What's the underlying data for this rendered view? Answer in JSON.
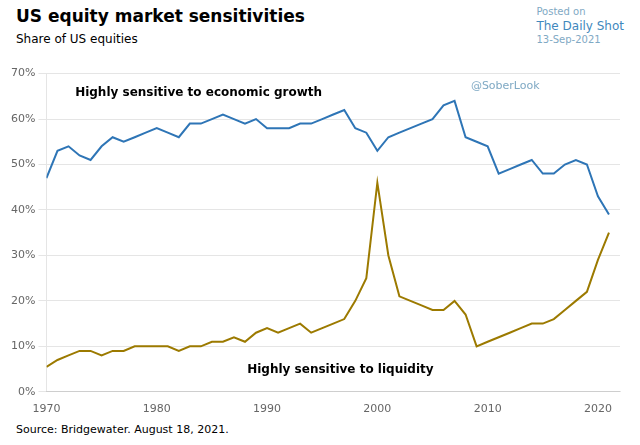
{
  "chart_data": {
    "type": "line",
    "title": "US equity market sensitivities",
    "subtitle": "Share of US equities",
    "annotations": [
      "Posted on",
      "The Daily Shot",
      "13-Sep-2021",
      "@SoberLook",
      "Highly sensitive to economic growth",
      "Highly sensitive to liquidity",
      "Source: Bridgewater. August 18, 2021."
    ],
    "x": [
      1970,
      1971,
      1972,
      1973,
      1974,
      1975,
      1976,
      1977,
      1978,
      1979,
      1980,
      1981,
      1982,
      1983,
      1984,
      1985,
      1986,
      1987,
      1988,
      1989,
      1990,
      1991,
      1992,
      1993,
      1994,
      1995,
      1996,
      1997,
      1998,
      1999,
      2000,
      2001,
      2002,
      2003,
      2004,
      2005,
      2006,
      2007,
      2008,
      2009,
      2010,
      2011,
      2012,
      2013,
      2014,
      2015,
      2016,
      2017,
      2018,
      2019,
      2020,
      2021
    ],
    "series": [
      {
        "color": "#2E75B6",
        "values": [
          0.47,
          0.53,
          0.54,
          0.52,
          0.51,
          0.54,
          0.56,
          0.55,
          0.56,
          0.57,
          0.58,
          0.57,
          0.56,
          0.59,
          0.59,
          0.6,
          0.61,
          0.6,
          0.59,
          0.6,
          0.58,
          0.58,
          0.58,
          0.59,
          0.59,
          0.6,
          0.61,
          0.62,
          0.58,
          0.57,
          0.53,
          0.56,
          0.57,
          0.58,
          0.59,
          0.6,
          0.63,
          0.64,
          0.56,
          0.55,
          0.54,
          0.48,
          0.49,
          0.5,
          0.51,
          0.48,
          0.48,
          0.5,
          0.51,
          0.5,
          0.43,
          0.39
        ]
      },
      {
        "color": "#9C7A00",
        "values": [
          0.055,
          0.07,
          0.08,
          0.09,
          0.09,
          0.08,
          0.09,
          0.09,
          0.1,
          0.1,
          0.1,
          0.1,
          0.09,
          0.1,
          0.1,
          0.11,
          0.11,
          0.12,
          0.11,
          0.13,
          0.14,
          0.13,
          0.14,
          0.15,
          0.13,
          0.14,
          0.15,
          0.16,
          0.2,
          0.25,
          0.46,
          0.3,
          0.21,
          0.2,
          0.19,
          0.18,
          0.18,
          0.2,
          0.17,
          0.1,
          0.11,
          0.12,
          0.13,
          0.14,
          0.15,
          0.15,
          0.16,
          0.18,
          0.2,
          0.22,
          0.29,
          0.35
        ]
      }
    ],
    "xlim": [
      1970,
      2022
    ],
    "xticks": [
      1970,
      1980,
      1990,
      2000,
      2010,
      2020
    ],
    "ylim": [
      0,
      0.7
    ],
    "yticks": [
      {
        "value": 0,
        "label": "0%"
      },
      {
        "value": 0.1,
        "label": "10%"
      },
      {
        "value": 0.2,
        "label": "20%"
      },
      {
        "value": 0.3,
        "label": "30%"
      },
      {
        "value": 0.4,
        "label": "40%"
      },
      {
        "value": 0.5,
        "label": "50%"
      },
      {
        "value": 0.6,
        "label": "60%"
      },
      {
        "value": 0.7,
        "label": "70%"
      }
    ],
    "grid": true
  }
}
